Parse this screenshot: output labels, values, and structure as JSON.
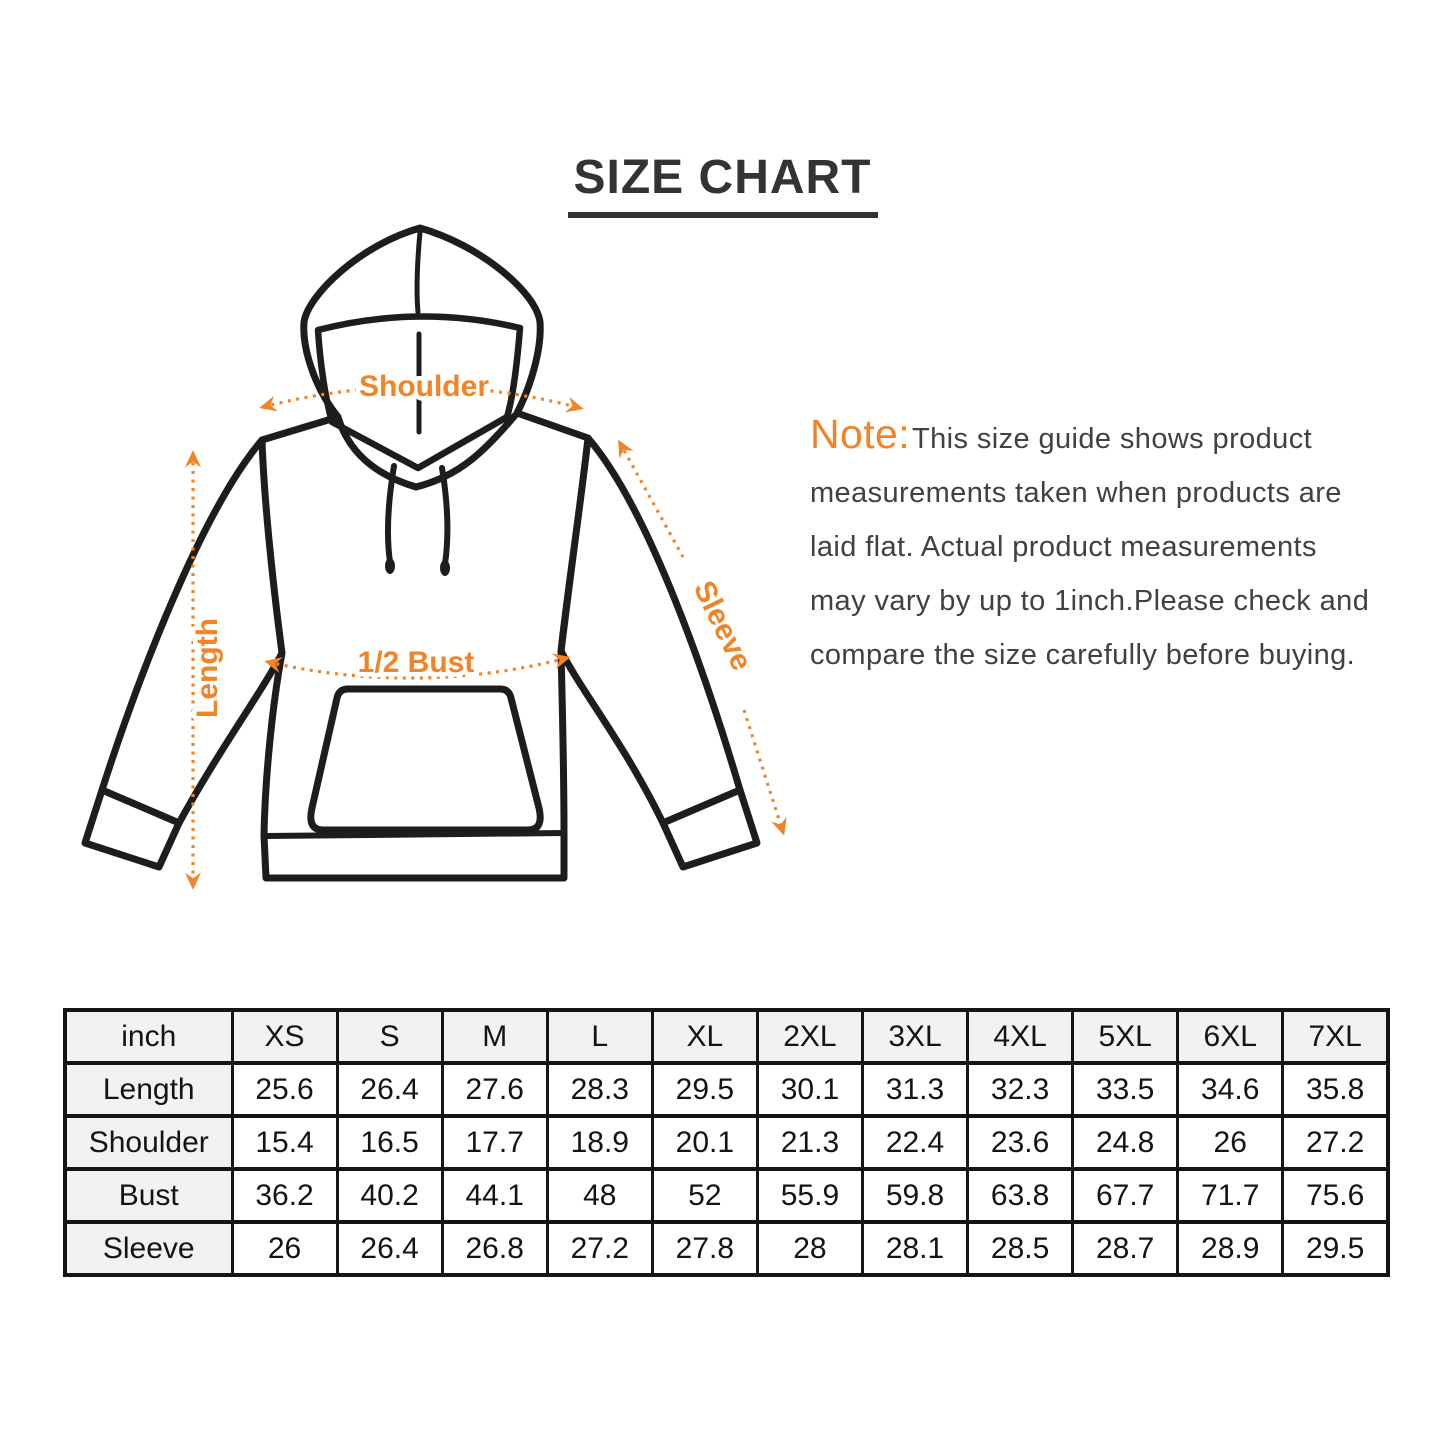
{
  "title": "SIZE CHART",
  "diagram": {
    "labels": {
      "shoulder": "Shoulder",
      "length": "Length",
      "half_bust": "1/2 Bust",
      "sleeve": "Sleeve"
    }
  },
  "note": {
    "label": "Note:",
    "lines": [
      "This size guide shows product",
      "measurements taken when products are",
      "laid flat. Actual product measurements",
      "may vary by up to 1inch.Please check and",
      "compare the size carefully before buying."
    ]
  },
  "colors": {
    "accent": "#F08426",
    "ink": "#1D1D1D",
    "note_text": "#414141",
    "table_header_bg": "#F2F2F2",
    "table_border": "#151515"
  },
  "chart_data": {
    "type": "table",
    "title": "SIZE CHART",
    "unit": "inch",
    "columns": [
      "XS",
      "S",
      "M",
      "L",
      "XL",
      "2XL",
      "3XL",
      "4XL",
      "5XL",
      "6XL",
      "7XL"
    ],
    "rows": [
      {
        "label": "Length",
        "values": [
          "25.6",
          "26.4",
          "27.6",
          "28.3",
          "29.5",
          "30.1",
          "31.3",
          "32.3",
          "33.5",
          "34.6",
          "35.8"
        ]
      },
      {
        "label": "Shoulder",
        "values": [
          "15.4",
          "16.5",
          "17.7",
          "18.9",
          "20.1",
          "21.3",
          "22.4",
          "23.6",
          "24.8",
          "26",
          "27.2"
        ]
      },
      {
        "label": "Bust",
        "values": [
          "36.2",
          "40.2",
          "44.1",
          "48",
          "52",
          "55.9",
          "59.8",
          "63.8",
          "67.7",
          "71.7",
          "75.6"
        ]
      },
      {
        "label": "Sleeve",
        "values": [
          "26",
          "26.4",
          "26.8",
          "27.2",
          "27.8",
          "28",
          "28.1",
          "28.5",
          "28.7",
          "28.9",
          "29.5"
        ]
      }
    ]
  }
}
